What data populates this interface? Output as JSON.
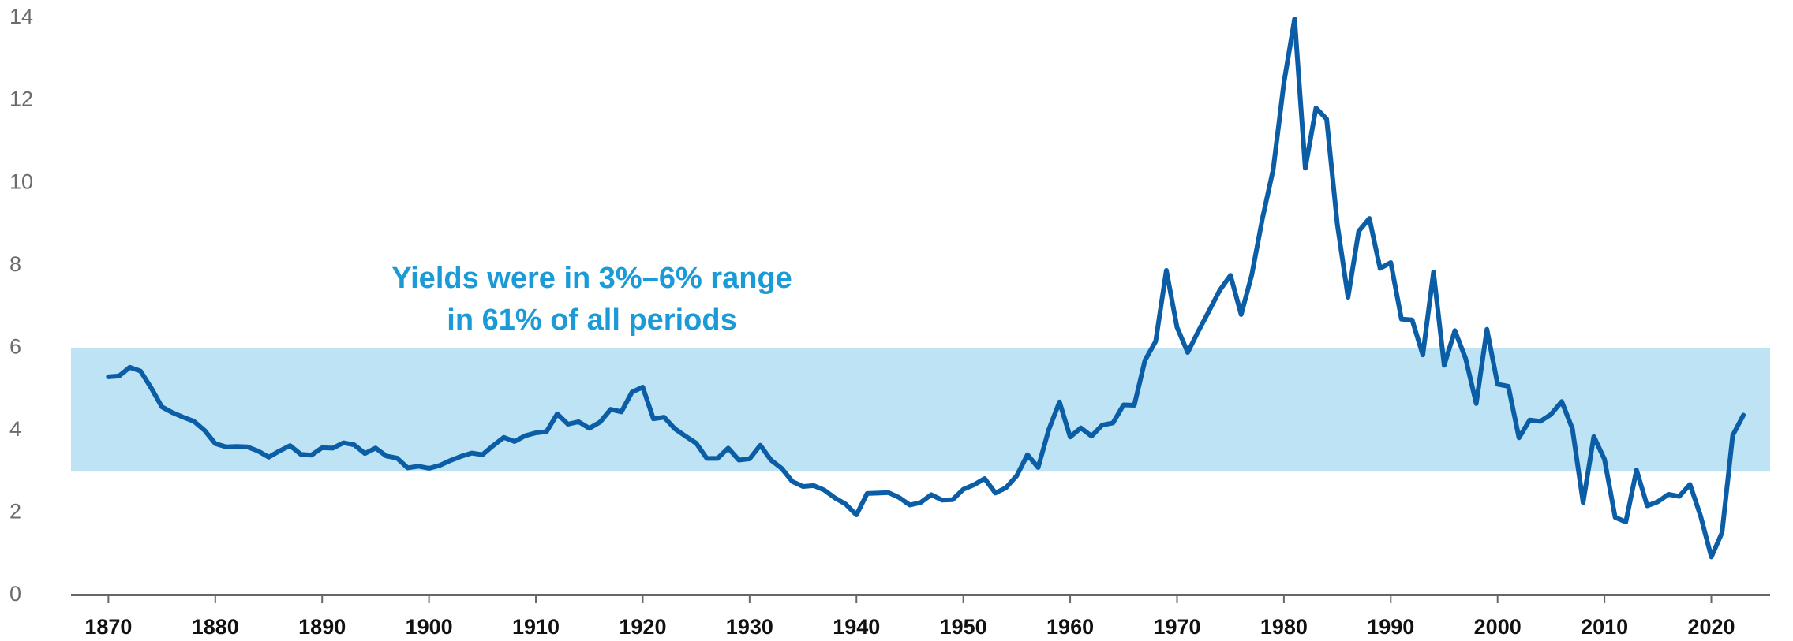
{
  "chart_data": {
    "type": "line",
    "annotation": [
      "Yields were in 3%–6% range",
      "in 61% of all periods"
    ],
    "band": [
      3,
      6
    ],
    "band_color": "#bee3f5",
    "color": "#0b5ea6",
    "x": [
      1870,
      1871,
      1872,
      1873,
      1874,
      1875,
      1876,
      1877,
      1878,
      1879,
      1880,
      1881,
      1882,
      1883,
      1884,
      1885,
      1886,
      1887,
      1888,
      1889,
      1890,
      1891,
      1892,
      1893,
      1894,
      1895,
      1896,
      1897,
      1898,
      1899,
      1900,
      1901,
      1902,
      1903,
      1904,
      1905,
      1906,
      1907,
      1908,
      1909,
      1910,
      1911,
      1912,
      1913,
      1914,
      1915,
      1916,
      1917,
      1918,
      1919,
      1920,
      1921,
      1922,
      1923,
      1924,
      1925,
      1926,
      1927,
      1928,
      1929,
      1930,
      1931,
      1932,
      1933,
      1934,
      1935,
      1936,
      1937,
      1938,
      1939,
      1940,
      1941,
      1942,
      1943,
      1944,
      1945,
      1946,
      1947,
      1948,
      1949,
      1950,
      1951,
      1952,
      1953,
      1954,
      1955,
      1956,
      1957,
      1958,
      1959,
      1960,
      1961,
      1962,
      1963,
      1964,
      1965,
      1966,
      1967,
      1968,
      1969,
      1970,
      1971,
      1972,
      1973,
      1974,
      1975,
      1976,
      1977,
      1978,
      1979,
      1980,
      1981,
      1982,
      1983,
      1984,
      1985,
      1986,
      1987,
      1988,
      1989,
      1990,
      1991,
      1992,
      1993,
      1994,
      1995,
      1996,
      1997,
      1998,
      1999,
      2000,
      2001,
      2002,
      2003,
      2004,
      2005,
      2006,
      2007,
      2008,
      2009,
      2010,
      2011,
      2012,
      2013,
      2014,
      2015,
      2016,
      2017,
      2018,
      2019,
      2020,
      2021,
      2022,
      2023
    ],
    "values": [
      5.3,
      5.32,
      5.53,
      5.44,
      5.03,
      4.57,
      4.43,
      4.32,
      4.22,
      4.0,
      3.68,
      3.6,
      3.61,
      3.6,
      3.5,
      3.35,
      3.5,
      3.63,
      3.42,
      3.4,
      3.58,
      3.57,
      3.7,
      3.65,
      3.44,
      3.57,
      3.38,
      3.33,
      3.09,
      3.13,
      3.08,
      3.15,
      3.27,
      3.37,
      3.45,
      3.41,
      3.63,
      3.83,
      3.73,
      3.87,
      3.94,
      3.97,
      4.4,
      4.15,
      4.21,
      4.05,
      4.2,
      4.51,
      4.45,
      4.93,
      5.05,
      4.28,
      4.32,
      4.04,
      3.86,
      3.69,
      3.32,
      3.32,
      3.57,
      3.28,
      3.31,
      3.64,
      3.28,
      3.08,
      2.76,
      2.64,
      2.66,
      2.55,
      2.36,
      2.21,
      1.95,
      2.47,
      2.48,
      2.49,
      2.37,
      2.19,
      2.25,
      2.44,
      2.31,
      2.32,
      2.57,
      2.68,
      2.83,
      2.48,
      2.61,
      2.9,
      3.41,
      3.1,
      4.02,
      4.69,
      3.84,
      4.06,
      3.86,
      4.13,
      4.18,
      4.62,
      4.61,
      5.7,
      6.16,
      7.88,
      6.5,
      5.89,
      6.41,
      6.9,
      7.4,
      7.76,
      6.81,
      7.78,
      9.15,
      10.33,
      12.43,
      13.98,
      10.36,
      11.82,
      11.55,
      9.0,
      7.23,
      8.83,
      9.14,
      7.93,
      8.07,
      6.7,
      6.68,
      5.83,
      7.84,
      5.58,
      6.42,
      5.75,
      4.65,
      6.45,
      5.12,
      5.07,
      3.82,
      4.25,
      4.22,
      4.39,
      4.7,
      4.04,
      2.25,
      3.85,
      3.3,
      1.89,
      1.78,
      3.04,
      2.17,
      2.27,
      2.45,
      2.4,
      2.69,
      1.92,
      0.93,
      1.52,
      3.88,
      4.37
    ],
    "xlim": [
      1866.5,
      2025.5
    ],
    "xticks": [
      1870,
      1880,
      1890,
      1900,
      1910,
      1920,
      1930,
      1940,
      1950,
      1960,
      1970,
      1980,
      1990,
      2000,
      2010,
      2020
    ],
    "ylim": [
      0,
      14
    ],
    "yticks": [
      0,
      2,
      4,
      6,
      8,
      10,
      12,
      14
    ]
  }
}
